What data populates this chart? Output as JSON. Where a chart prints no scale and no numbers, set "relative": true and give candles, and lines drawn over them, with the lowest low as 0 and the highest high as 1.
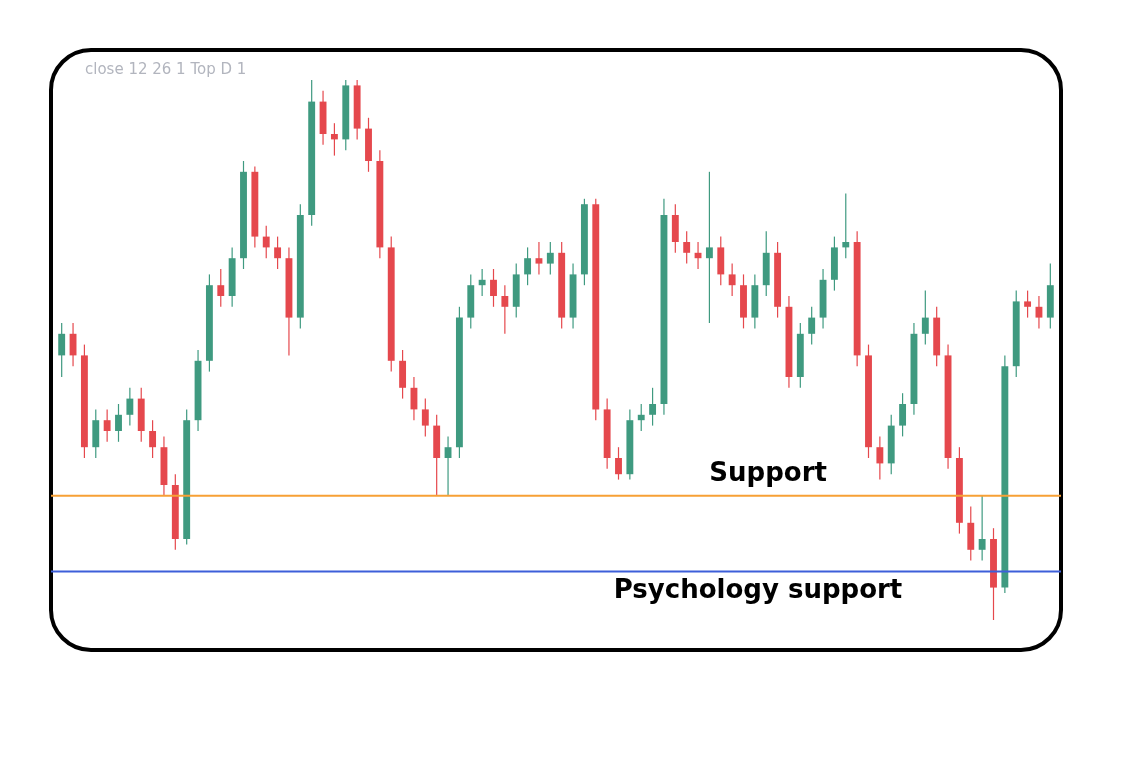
{
  "chart_data": {
    "type": "candlestick",
    "relative": true,
    "categories": [
      null,
      null,
      null,
      null,
      null,
      null,
      null,
      null,
      null,
      null,
      null,
      null,
      null,
      null,
      null,
      null,
      null,
      null,
      null,
      null,
      null,
      null,
      null,
      null,
      null,
      null,
      null,
      null,
      null,
      null,
      null,
      null,
      null,
      null,
      null,
      null,
      null,
      null,
      null,
      null,
      null,
      null,
      null,
      null,
      null,
      null,
      null,
      null,
      null,
      null,
      null,
      null,
      null,
      null,
      null,
      null,
      null,
      null,
      null,
      null,
      null,
      null,
      null,
      null,
      null,
      null,
      null,
      null,
      null,
      null,
      null,
      null,
      null,
      null,
      null,
      null,
      null,
      null,
      null,
      null,
      null,
      null,
      null,
      null,
      null,
      null,
      null,
      null
    ],
    "ohlc": [
      [
        0.49,
        0.55,
        0.45,
        0.53
      ],
      [
        0.53,
        0.55,
        0.47,
        0.49
      ],
      [
        0.49,
        0.51,
        0.3,
        0.32
      ],
      [
        0.32,
        0.39,
        0.3,
        0.37
      ],
      [
        0.37,
        0.39,
        0.33,
        0.35
      ],
      [
        0.35,
        0.4,
        0.33,
        0.38
      ],
      [
        0.38,
        0.43,
        0.36,
        0.41
      ],
      [
        0.41,
        0.43,
        0.33,
        0.35
      ],
      [
        0.35,
        0.37,
        0.3,
        0.32
      ],
      [
        0.32,
        0.34,
        0.23,
        0.25
      ],
      [
        0.25,
        0.27,
        0.13,
        0.15
      ],
      [
        0.15,
        0.39,
        0.14,
        0.37
      ],
      [
        0.37,
        0.5,
        0.35,
        0.48
      ],
      [
        0.48,
        0.64,
        0.46,
        0.62
      ],
      [
        0.62,
        0.65,
        0.58,
        0.6
      ],
      [
        0.6,
        0.69,
        0.58,
        0.67
      ],
      [
        0.67,
        0.85,
        0.65,
        0.83
      ],
      [
        0.83,
        0.84,
        0.69,
        0.71
      ],
      [
        0.71,
        0.73,
        0.67,
        0.69
      ],
      [
        0.69,
        0.71,
        0.65,
        0.67
      ],
      [
        0.67,
        0.69,
        0.49,
        0.56
      ],
      [
        0.56,
        0.77,
        0.54,
        0.75
      ],
      [
        0.75,
        1.0,
        0.73,
        0.96
      ],
      [
        0.96,
        0.98,
        0.88,
        0.9
      ],
      [
        0.9,
        0.92,
        0.86,
        0.89
      ],
      [
        0.89,
        1.0,
        0.87,
        0.99
      ],
      [
        0.99,
        1.0,
        0.89,
        0.91
      ],
      [
        0.91,
        0.93,
        0.83,
        0.85
      ],
      [
        0.85,
        0.87,
        0.67,
        0.69
      ],
      [
        0.69,
        0.71,
        0.46,
        0.48
      ],
      [
        0.48,
        0.5,
        0.41,
        0.43
      ],
      [
        0.43,
        0.45,
        0.37,
        0.39
      ],
      [
        0.39,
        0.41,
        0.34,
        0.36
      ],
      [
        0.36,
        0.38,
        0.23,
        0.3
      ],
      [
        0.3,
        0.34,
        0.23,
        0.32
      ],
      [
        0.32,
        0.58,
        0.3,
        0.56
      ],
      [
        0.56,
        0.64,
        0.54,
        0.62
      ],
      [
        0.62,
        0.65,
        0.6,
        0.63
      ],
      [
        0.63,
        0.65,
        0.58,
        0.6
      ],
      [
        0.6,
        0.62,
        0.53,
        0.58
      ],
      [
        0.58,
        0.66,
        0.56,
        0.64
      ],
      [
        0.64,
        0.69,
        0.62,
        0.67
      ],
      [
        0.67,
        0.7,
        0.64,
        0.66
      ],
      [
        0.66,
        0.7,
        0.64,
        0.68
      ],
      [
        0.68,
        0.7,
        0.54,
        0.56
      ],
      [
        0.56,
        0.66,
        0.54,
        0.64
      ],
      [
        0.64,
        0.78,
        0.62,
        0.77
      ],
      [
        0.77,
        0.78,
        0.37,
        0.39
      ],
      [
        0.39,
        0.41,
        0.28,
        0.3
      ],
      [
        0.3,
        0.32,
        0.26,
        0.27
      ],
      [
        0.27,
        0.39,
        0.26,
        0.37
      ],
      [
        0.37,
        0.4,
        0.35,
        0.38
      ],
      [
        0.38,
        0.43,
        0.36,
        0.4
      ],
      [
        0.4,
        0.78,
        0.38,
        0.75
      ],
      [
        0.75,
        0.77,
        0.68,
        0.7
      ],
      [
        0.7,
        0.72,
        0.66,
        0.68
      ],
      [
        0.68,
        0.7,
        0.65,
        0.67
      ],
      [
        0.67,
        0.83,
        0.55,
        0.69
      ],
      [
        0.69,
        0.71,
        0.62,
        0.64
      ],
      [
        0.64,
        0.66,
        0.6,
        0.62
      ],
      [
        0.62,
        0.64,
        0.54,
        0.56
      ],
      [
        0.56,
        0.64,
        0.54,
        0.62
      ],
      [
        0.62,
        0.72,
        0.6,
        0.68
      ],
      [
        0.68,
        0.7,
        0.56,
        0.58
      ],
      [
        0.58,
        0.6,
        0.43,
        0.45
      ],
      [
        0.45,
        0.55,
        0.43,
        0.53
      ],
      [
        0.53,
        0.58,
        0.51,
        0.56
      ],
      [
        0.56,
        0.65,
        0.54,
        0.63
      ],
      [
        0.63,
        0.71,
        0.61,
        0.69
      ],
      [
        0.69,
        0.79,
        0.67,
        0.7
      ],
      [
        0.7,
        0.72,
        0.47,
        0.49
      ],
      [
        0.49,
        0.51,
        0.3,
        0.32
      ],
      [
        0.32,
        0.34,
        0.26,
        0.29
      ],
      [
        0.29,
        0.38,
        0.27,
        0.36
      ],
      [
        0.36,
        0.42,
        0.34,
        0.4
      ],
      [
        0.4,
        0.55,
        0.38,
        0.53
      ],
      [
        0.53,
        0.61,
        0.51,
        0.56
      ],
      [
        0.56,
        0.58,
        0.47,
        0.49
      ],
      [
        0.49,
        0.51,
        0.28,
        0.3
      ],
      [
        0.3,
        0.32,
        0.16,
        0.18
      ],
      [
        0.18,
        0.21,
        0.11,
        0.13
      ],
      [
        0.13,
        0.23,
        0.11,
        0.15
      ],
      [
        0.15,
        0.17,
        0.0,
        0.06
      ],
      [
        0.06,
        0.49,
        0.05,
        0.47
      ],
      [
        0.47,
        0.61,
        0.45,
        0.59
      ],
      [
        0.59,
        0.61,
        0.56,
        0.58
      ],
      [
        0.58,
        0.6,
        0.54,
        0.56
      ],
      [
        0.56,
        0.66,
        0.54,
        0.62
      ]
    ],
    "ref_lines": [
      {
        "axis": "y",
        "value": 0.23,
        "label": "Support",
        "color": "#f7a035"
      },
      {
        "axis": "y",
        "value": 0.09,
        "label": "Psychology support",
        "color": "#3d5fd9"
      }
    ],
    "annotations": [
      "close 12 26 1 Top D 1"
    ]
  }
}
